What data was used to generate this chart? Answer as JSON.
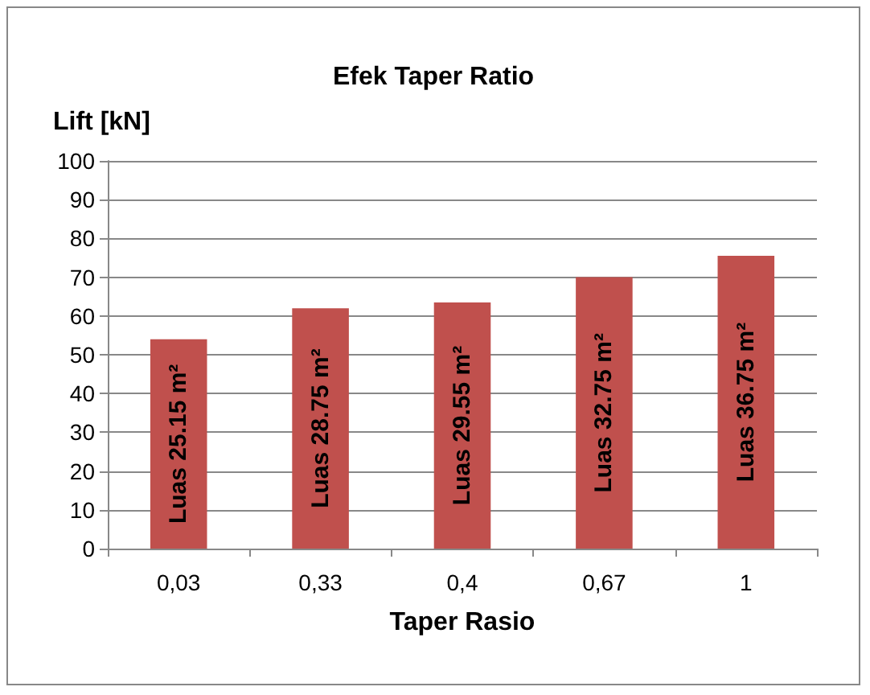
{
  "chart_data": {
    "type": "bar",
    "title": "Efek Taper Ratio",
    "ylabel": "Lift [kN]",
    "xlabel": "Taper Rasio",
    "categories": [
      "0,03",
      "0,33",
      "0,4",
      "0,67",
      "1"
    ],
    "values": [
      54,
      62,
      63.5,
      70,
      75.5
    ],
    "value_labels": [
      "Luas 25.15 m²",
      "Luas 28.75 m²",
      "Luas 29.55 m²",
      "Luas 32.75 m²",
      "Luas 36.75 m²"
    ],
    "color": "#c0504d",
    "ylim": [
      0,
      100
    ],
    "yticks": [
      0,
      10,
      20,
      30,
      40,
      50,
      60,
      70,
      80,
      90,
      100
    ],
    "grid": "y"
  }
}
